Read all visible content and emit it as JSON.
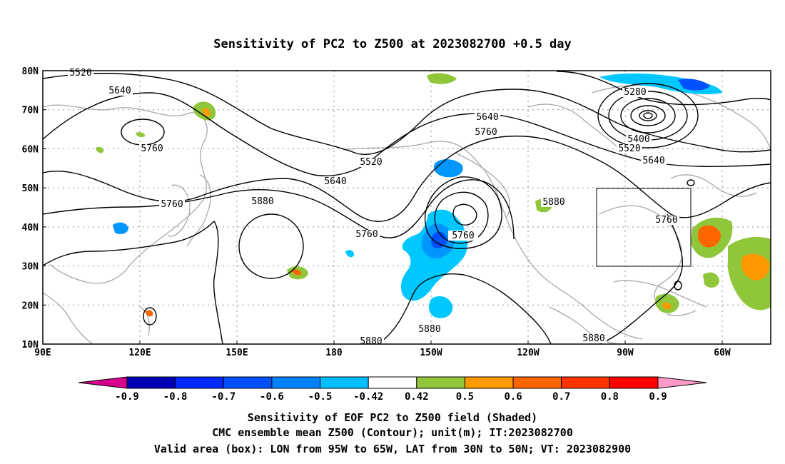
{
  "title": "Sensitivity of PC2 to Z500 at 2023082700 +0.5 day",
  "map": {
    "lat_labels": [
      "80N",
      "70N",
      "60N",
      "50N",
      "40N",
      "30N",
      "20N",
      "10N"
    ],
    "lon_labels": [
      "90E",
      "120E",
      "150E",
      "180",
      "150W",
      "120W",
      "90W",
      "60W"
    ],
    "contour_labels": [
      "5520",
      "5640",
      "5760",
      "5520",
      "5640",
      "5760",
      "5640",
      "5760",
      "5880",
      "5760",
      "5280",
      "5400",
      "5520",
      "5640",
      "5880",
      "5760",
      "5880",
      "5880",
      "5880"
    ],
    "box": {
      "lon_range": "95W to 65W",
      "lat_range": "30N to 50N"
    },
    "colors": {
      "neg_0.9": "#d6006f",
      "neg_0.8": "#0000b4",
      "neg_0.7": "#0028ff",
      "neg_0.6": "#0050ff",
      "neg_0.5": "#0096ff",
      "neg_0.42": "#00c8ff",
      "pos_0.42": "#8fc63a",
      "pos_0.5": "#ff9900",
      "pos_0.6": "#ff6600",
      "pos_0.7": "#ff3300",
      "pos_0.8": "#ff0000",
      "pos_0.9": "#ff99c8"
    }
  },
  "colorbar": {
    "labels": [
      "-0.9",
      "-0.8",
      "-0.7",
      "-0.6",
      "-0.5",
      "-0.42",
      "0.42",
      "0.5",
      "0.6",
      "0.7",
      "0.8",
      "0.9"
    ],
    "colors": [
      "#d6008c",
      "#0000b4",
      "#0028ff",
      "#0050ff",
      "#0082ff",
      "#00beff",
      "#ffffff",
      "#8fc63a",
      "#ff9900",
      "#ff6600",
      "#ff3300",
      "#ff0000",
      "#ff99c8"
    ]
  },
  "caption": {
    "line1": "Sensitivity of EOF PC2 to Z500 field (Shaded)",
    "line2": "CMC ensemble mean Z500 (Contour); unit(m); IT:2023082700",
    "line3": "Valid area (box): LON from 95W to 65W, LAT from 30N to 50N; VT: 2023082900"
  }
}
